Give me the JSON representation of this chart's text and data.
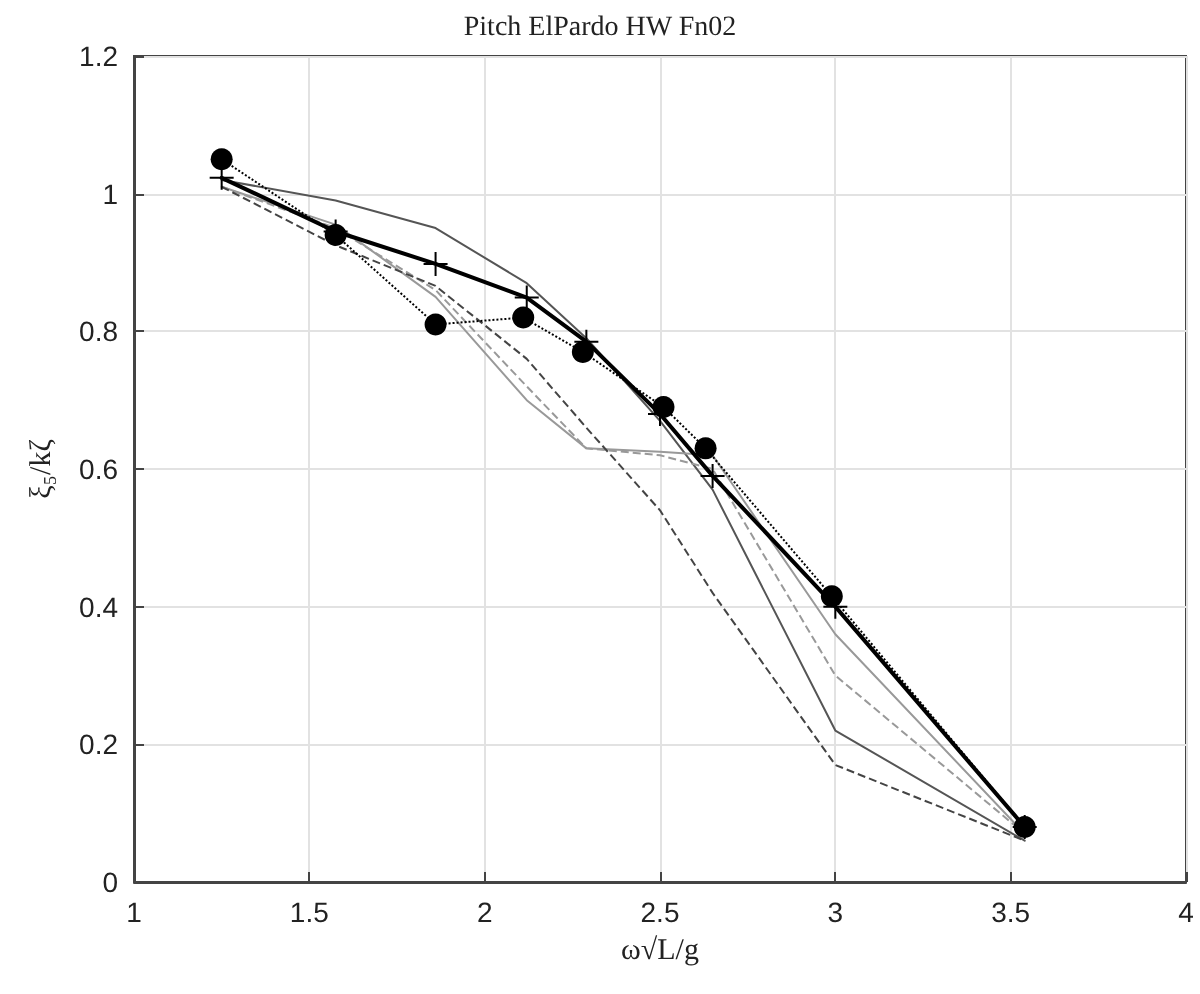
{
  "chart_data": {
    "type": "line",
    "title": "Pitch ElPardo HW Fn02",
    "xlabel": "ω√L/g",
    "ylabel": "ξ₅/kζ",
    "x": [
      1.25,
      1.575,
      1.86,
      2.12,
      2.29,
      2.5,
      2.65,
      3.0,
      3.54
    ],
    "xlim": [
      1,
      4
    ],
    "xticks": [
      1,
      1.5,
      2,
      2.5,
      3,
      3.5,
      4
    ],
    "ylim": [
      0,
      1.2
    ],
    "yticks": [
      0,
      0.2,
      0.4,
      0.6,
      0.8,
      1,
      1.2
    ],
    "grid": true,
    "series": [
      {
        "color": "#555555",
        "line_style": "solid",
        "marker": "none",
        "values": [
          1.02,
          0.99,
          0.95,
          0.87,
          0.79,
          0.67,
          0.57,
          0.22,
          0.06
        ]
      },
      {
        "color": "#999999",
        "line_style": "solid",
        "marker": "none",
        "values": [
          1.01,
          0.955,
          0.85,
          0.7,
          0.63,
          0.625,
          0.62,
          0.36,
          0.07
        ]
      },
      {
        "color": "#999999",
        "line_style": "dashed",
        "marker": "none",
        "values": [
          1.01,
          0.95,
          0.86,
          0.72,
          0.63,
          0.62,
          0.6,
          0.3,
          0.07
        ]
      },
      {
        "color": "#444444",
        "line_style": "dashed",
        "marker": "none",
        "values": [
          1.01,
          0.925,
          0.866,
          0.76,
          0.66,
          0.54,
          0.42,
          0.17,
          0.06
        ]
      },
      {
        "color": "#000000",
        "line_style": "solid",
        "marker": "cross",
        "values": [
          1.023,
          0.945,
          0.898,
          0.849,
          0.785,
          0.68,
          0.59,
          0.4,
          0.08
        ]
      },
      {
        "color": "#000000",
        "line_style": "dotted",
        "marker": "circle",
        "x": [
          1.25,
          1.575,
          1.86,
          2.11,
          2.28,
          2.51,
          2.63,
          2.99,
          3.54
        ],
        "values": [
          1.05,
          0.94,
          0.81,
          0.82,
          0.77,
          0.69,
          0.63,
          0.415,
          0.08
        ]
      }
    ]
  }
}
